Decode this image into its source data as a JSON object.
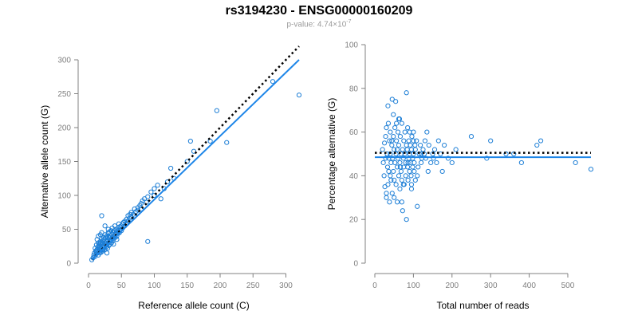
{
  "title": "rs3194230 - ENSG00000160209",
  "subtitle": {
    "prefix": "p-value: 4.74×10",
    "exponent": "-7"
  },
  "colors": {
    "points": "#1e7fd6",
    "fit_line": "#1e86e8",
    "reference_line": "#000000",
    "axis": "#808080"
  },
  "chart_data": [
    {
      "type": "scatter",
      "title": "",
      "xlabel": "Reference allele count (C)",
      "ylabel": "Alternative allele count (G)",
      "xlim": [
        0,
        320
      ],
      "ylim": [
        0,
        300
      ],
      "xticks": [
        0,
        50,
        100,
        150,
        200,
        250,
        300
      ],
      "yticks": [
        0,
        50,
        100,
        150,
        200,
        250,
        300
      ],
      "reference_line": {
        "style": "dotted",
        "x": [
          5,
          320
        ],
        "y": [
          5,
          320
        ]
      },
      "fit_line": {
        "x": [
          5,
          320
        ],
        "y": [
          5,
          300
        ]
      },
      "points": {
        "x": [
          5,
          7,
          8,
          9,
          10,
          10,
          11,
          12,
          12,
          13,
          13,
          14,
          14,
          15,
          15,
          15,
          16,
          16,
          17,
          17,
          18,
          18,
          18,
          19,
          19,
          20,
          20,
          20,
          21,
          21,
          22,
          22,
          22,
          23,
          23,
          24,
          24,
          25,
          25,
          25,
          26,
          26,
          27,
          27,
          28,
          28,
          29,
          29,
          30,
          30,
          30,
          31,
          31,
          32,
          32,
          33,
          33,
          34,
          34,
          35,
          35,
          36,
          36,
          37,
          37,
          38,
          38,
          39,
          40,
          40,
          41,
          42,
          42,
          43,
          44,
          45,
          45,
          46,
          47,
          48,
          48,
          50,
          50,
          52,
          52,
          53,
          55,
          55,
          57,
          58,
          60,
          60,
          62,
          63,
          65,
          65,
          68,
          70,
          70,
          72,
          75,
          75,
          78,
          80,
          80,
          82,
          85,
          88,
          90,
          90,
          95,
          100,
          100,
          105,
          110,
          115,
          120,
          125,
          130,
          150,
          155,
          160,
          185,
          195,
          210,
          280,
          320,
          20,
          25,
          30,
          35,
          15,
          18,
          22,
          28,
          33,
          38,
          43,
          47,
          12,
          17,
          23,
          27,
          32
        ],
        "y": [
          5,
          8,
          12,
          15,
          10,
          22,
          18,
          14,
          27,
          20,
          35,
          16,
          24,
          12,
          30,
          40,
          20,
          28,
          15,
          25,
          18,
          32,
          42,
          22,
          16,
          28,
          36,
          45,
          20,
          30,
          25,
          33,
          18,
          38,
          22,
          28,
          35,
          20,
          30,
          42,
          26,
          38,
          24,
          32,
          28,
          40,
          22,
          35,
          30,
          44,
          50,
          26,
          38,
          32,
          46,
          28,
          40,
          35,
          48,
          30,
          42,
          38,
          52,
          33,
          45,
          40,
          36,
          48,
          42,
          55,
          38,
          45,
          50,
          40,
          48,
          52,
          44,
          58,
          48,
          50,
          54,
          55,
          48,
          52,
          58,
          60,
          55,
          62,
          58,
          65,
          62,
          70,
          66,
          72,
          68,
          75,
          72,
          80,
          70,
          76,
          82,
          78,
          85,
          88,
          80,
          92,
          95,
          90,
          98,
          32,
          105,
          100,
          110,
          115,
          95,
          110,
          120,
          140,
          125,
          150,
          180,
          165,
          180,
          225,
          178,
          268,
          248,
          70,
          55,
          45,
          35,
          25,
          30,
          20,
          15,
          40,
          28,
          35,
          45,
          18,
          22,
          25,
          32,
          38
        ]
      }
    },
    {
      "type": "scatter",
      "title": "",
      "xlabel": "Total number of reads",
      "ylabel": "Percentage alternative (G)",
      "xlim": [
        0,
        560
      ],
      "ylim": [
        0,
        100
      ],
      "xticks": [
        0,
        100,
        200,
        300,
        400,
        500
      ],
      "yticks": [
        0,
        20,
        40,
        60,
        80,
        100
      ],
      "reference_line": {
        "style": "dotted",
        "x": [
          0,
          560
        ],
        "y": [
          50.5,
          50.5
        ]
      },
      "fit_line": {
        "x": [
          0,
          560
        ],
        "y": [
          48.5,
          48.5
        ]
      },
      "points": {
        "x": [
          20,
          22,
          24,
          25,
          26,
          28,
          28,
          30,
          30,
          32,
          33,
          34,
          35,
          36,
          38,
          38,
          40,
          40,
          42,
          42,
          44,
          45,
          45,
          46,
          48,
          48,
          50,
          50,
          52,
          52,
          54,
          55,
          55,
          56,
          58,
          58,
          60,
          60,
          62,
          62,
          64,
          65,
          65,
          66,
          68,
          68,
          70,
          70,
          72,
          72,
          74,
          75,
          75,
          76,
          78,
          78,
          80,
          80,
          82,
          82,
          84,
          85,
          85,
          86,
          88,
          88,
          90,
          90,
          92,
          92,
          94,
          95,
          95,
          96,
          98,
          98,
          100,
          100,
          102,
          102,
          104,
          105,
          105,
          108,
          110,
          112,
          115,
          118,
          120,
          122,
          125,
          128,
          130,
          132,
          135,
          138,
          140,
          145,
          150,
          152,
          155,
          160,
          165,
          170,
          175,
          180,
          190,
          200,
          210,
          250,
          290,
          300,
          340,
          360,
          380,
          420,
          430,
          520,
          560,
          34,
          48,
          56,
          82,
          95,
          110,
          120,
          36,
          44,
          50,
          58,
          66,
          74,
          86,
          30,
          40,
          62,
          70,
          90,
          100
        ],
        "y": [
          52,
          46,
          40,
          55,
          35,
          58,
          48,
          62,
          30,
          50,
          44,
          36,
          64,
          42,
          56,
          28,
          50,
          60,
          38,
          46,
          54,
          32,
          75,
          48,
          58,
          42,
          52,
          38,
          62,
          46,
          74,
          50,
          36,
          56,
          44,
          28,
          60,
          48,
          40,
          54,
          66,
          46,
          34,
          58,
          50,
          42,
          64,
          38,
          52,
          24,
          48,
          56,
          44,
          36,
          60,
          50,
          46,
          40,
          54,
          20,
          52,
          62,
          44,
          38,
          48,
          56,
          50,
          42,
          46,
          54,
          40,
          52,
          36,
          58,
          48,
          44,
          60,
          50,
          42,
          46,
          54,
          38,
          52,
          56,
          26,
          44,
          50,
          54,
          46,
          48,
          52,
          50,
          56,
          48,
          60,
          42,
          54,
          46,
          50,
          48,
          52,
          46,
          56,
          50,
          42,
          54,
          48,
          46,
          52,
          58,
          48,
          56,
          50,
          50,
          46,
          54,
          56,
          46,
          43,
          72,
          68,
          64,
          78,
          34,
          40,
          50,
          48,
          56,
          30,
          52,
          44,
          36,
          46,
          32,
          40,
          66,
          28,
          60,
          56
        ]
      }
    }
  ]
}
